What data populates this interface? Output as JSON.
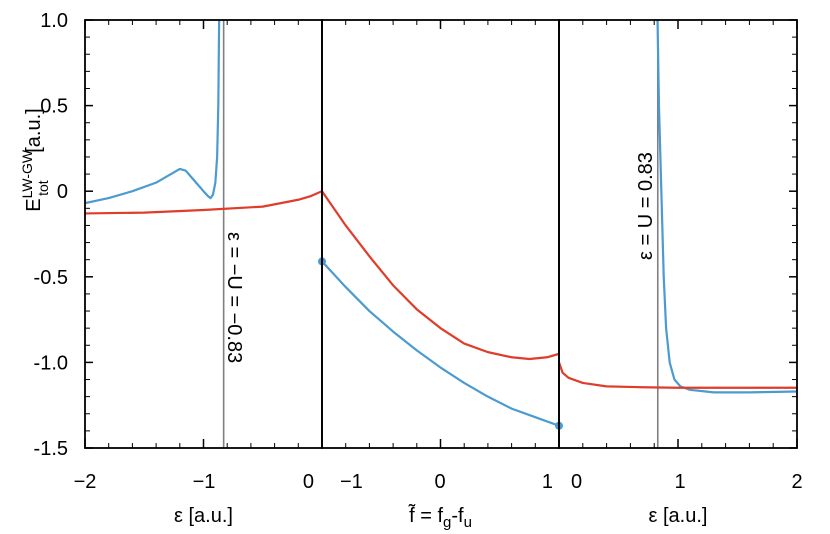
{
  "chart_data": {
    "type": "line",
    "ylim": [
      -1.5,
      1.0
    ],
    "yticks": [
      "1.0",
      "0.5",
      "0",
      "-0.5",
      "-1.0",
      "-1.5"
    ],
    "ylabel": {
      "main": "E",
      "sup": "LW-GW",
      "sub": "tot",
      "unit": " [a.u.]"
    },
    "colors": {
      "blue": "#4a9bd1",
      "red": "#e03c2a",
      "guide": "#808080"
    },
    "panels": [
      {
        "id": "left",
        "xlim": [
          -2,
          0
        ],
        "xticks": [
          "−2",
          "−1",
          "0"
        ],
        "xlabel": "ε [a.u.]",
        "annotation": "ε = −U = −0.83",
        "guide_x": -0.83,
        "series": [
          {
            "color": "blue",
            "points": [
              [
                -2.0,
                -0.07
              ],
              [
                -1.8,
                -0.04
              ],
              [
                -1.6,
                0.0
              ],
              [
                -1.4,
                0.05
              ],
              [
                -1.3,
                0.09
              ],
              [
                -1.2,
                0.13
              ],
              [
                -1.15,
                0.12
              ],
              [
                -1.1,
                0.08
              ],
              [
                -1.05,
                0.04
              ],
              [
                -1.0,
                0.0
              ],
              [
                -0.96,
                -0.03
              ],
              [
                -0.94,
                -0.04
              ],
              [
                -0.92,
                -0.02
              ],
              [
                -0.9,
                0.05
              ],
              [
                -0.885,
                0.2
              ],
              [
                -0.875,
                0.5
              ],
              [
                -0.868,
                1.0
              ]
            ]
          },
          {
            "color": "red",
            "points": [
              [
                -2.0,
                -0.13
              ],
              [
                -1.5,
                -0.125
              ],
              [
                -1.0,
                -0.11
              ],
              [
                -0.5,
                -0.09
              ],
              [
                -0.2,
                -0.05
              ],
              [
                -0.1,
                -0.03
              ],
              [
                -0.05,
                -0.015
              ],
              [
                0.0,
                0.0
              ]
            ]
          }
        ]
      },
      {
        "id": "middle",
        "xlim": [
          -1,
          1
        ],
        "xticks": [
          "0",
          "−1",
          "0",
          "1"
        ],
        "xlabel": "f̃ = fg-fu",
        "series": [
          {
            "color": "blue",
            "points": [
              [
                -1.0,
                -0.41
              ],
              [
                -0.8,
                -0.56
              ],
              [
                -0.6,
                -0.7
              ],
              [
                -0.4,
                -0.82
              ],
              [
                -0.2,
                -0.93
              ],
              [
                0.0,
                -1.03
              ],
              [
                0.2,
                -1.12
              ],
              [
                0.4,
                -1.2
              ],
              [
                0.6,
                -1.27
              ],
              [
                0.8,
                -1.32
              ],
              [
                1.0,
                -1.37
              ]
            ],
            "endpoints": [
              [
                -1.0,
                -0.41
              ],
              [
                1.0,
                -1.37
              ]
            ]
          },
          {
            "color": "red",
            "points": [
              [
                -1.0,
                0.0
              ],
              [
                -0.8,
                -0.2
              ],
              [
                -0.6,
                -0.38
              ],
              [
                -0.4,
                -0.55
              ],
              [
                -0.2,
                -0.69
              ],
              [
                0.0,
                -0.8
              ],
              [
                0.2,
                -0.89
              ],
              [
                0.4,
                -0.94
              ],
              [
                0.6,
                -0.97
              ],
              [
                0.75,
                -0.98
              ],
              [
                0.9,
                -0.97
              ],
              [
                1.0,
                -0.95
              ]
            ]
          }
        ]
      },
      {
        "id": "right",
        "xlim": [
          0,
          2
        ],
        "xticks": [
          "1",
          "0",
          "1",
          "2"
        ],
        "xlabel": "ε [a.u.]",
        "annotation": "ε = U = 0.83",
        "guide_x": 0.83,
        "series": [
          {
            "color": "blue",
            "points": [
              [
                0.828,
                1.0
              ],
              [
                0.84,
                0.5
              ],
              [
                0.86,
                0.0
              ],
              [
                0.88,
                -0.5
              ],
              [
                0.9,
                -0.8
              ],
              [
                0.93,
                -1.0
              ],
              [
                0.97,
                -1.1
              ],
              [
                1.02,
                -1.14
              ],
              [
                1.1,
                -1.16
              ],
              [
                1.3,
                -1.175
              ],
              [
                1.6,
                -1.175
              ],
              [
                2.0,
                -1.17
              ]
            ]
          },
          {
            "color": "red",
            "points": [
              [
                0.0,
                -1.0
              ],
              [
                0.03,
                -1.06
              ],
              [
                0.08,
                -1.09
              ],
              [
                0.2,
                -1.12
              ],
              [
                0.4,
                -1.14
              ],
              [
                0.7,
                -1.145
              ],
              [
                1.0,
                -1.148
              ],
              [
                1.5,
                -1.148
              ],
              [
                2.0,
                -1.148
              ]
            ]
          }
        ]
      }
    ]
  }
}
